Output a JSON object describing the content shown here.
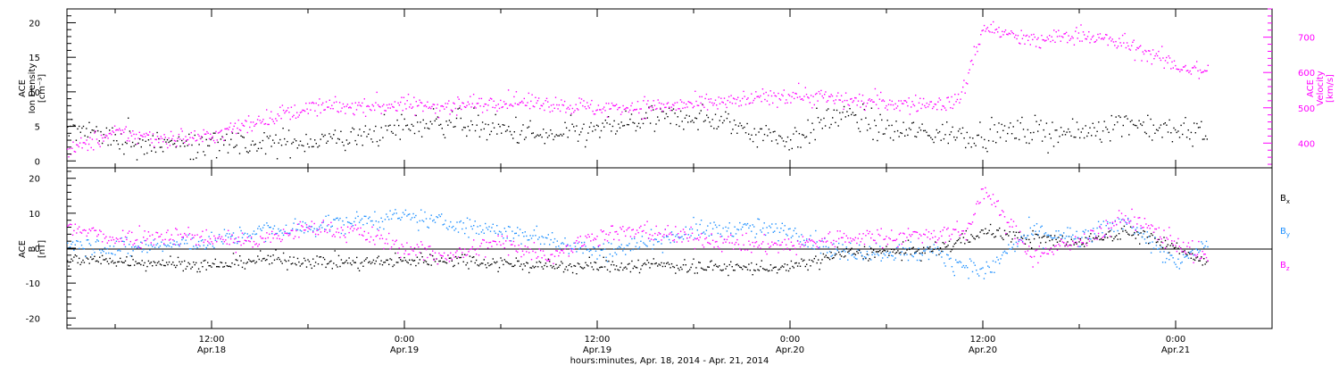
{
  "colors": {
    "axes": "#000000",
    "magenta": "#ff00ff",
    "blue": "#1e90ff"
  },
  "x_axis": {
    "ticks": [
      {
        "t": 12,
        "time": "12:00",
        "date": "Apr.18"
      },
      {
        "t": 24,
        "time": "0:00",
        "date": "Apr.19"
      },
      {
        "t": 36,
        "time": "12:00",
        "date": "Apr.19"
      },
      {
        "t": 48,
        "time": "0:00",
        "date": "Apr.20"
      },
      {
        "t": 60,
        "time": "12:00",
        "date": "Apr.20"
      },
      {
        "t": 72,
        "time": "0:00",
        "date": "Apr.21"
      }
    ],
    "title": "hours:minutes, Apr. 18, 2014 - Apr. 21, 2014"
  },
  "chart_data": [
    {
      "type": "scatter",
      "panel": "top",
      "xlim": [
        "Apr. 18 03:00",
        "Apr. 21 06:00"
      ],
      "left_axis": {
        "title_lines": [
          "ACE",
          "Ion Density",
          "[cm⁻³]"
        ],
        "ylim": [
          -1,
          22
        ],
        "tick_labels": [
          "0",
          "5",
          "10",
          "15",
          "20"
        ]
      },
      "right_axis": {
        "title_lines": [
          "ACE",
          "Velocity",
          "[km/s]"
        ],
        "ylim": [
          330,
          780
        ],
        "tick_labels": [
          "400",
          "500",
          "600",
          "700"
        ]
      },
      "series": [
        {
          "quantity": "density",
          "color": "#000000",
          "axis": "left",
          "x": [
            "Apr.18 03:00",
            "Apr.18 06:00",
            "Apr.18 09:00",
            "Apr.18 12:00",
            "Apr.18 15:00",
            "Apr.18 18:00",
            "Apr.18 21:00",
            "Apr.19 00:00",
            "Apr.19 03:00",
            "Apr.19 06:00",
            "Apr.19 09:00",
            "Apr.19 12:00",
            "Apr.19 15:00",
            "Apr.19 18:00",
            "Apr.19 21:00",
            "Apr.20 00:00",
            "Apr.20 03:00",
            "Apr.20 06:00",
            "Apr.20 09:00",
            "Apr.20 12:00",
            "Apr.20 15:00",
            "Apr.20 18:00",
            "Apr.20 21:00",
            "Apr.21 00:00",
            "Apr.21 02:00"
          ],
          "values": [
            5,
            3.2,
            2.5,
            2.5,
            2.3,
            3,
            3.5,
            5,
            6,
            4.5,
            3.5,
            4.5,
            6,
            6.5,
            5,
            3,
            7,
            4.5,
            4,
            4,
            4.5,
            4,
            6,
            4,
            5
          ]
        },
        {
          "quantity": "velocity",
          "color": "#ff00ff",
          "axis": "right",
          "x": [
            "Apr.18 03:00",
            "Apr.18 06:00",
            "Apr.18 09:00",
            "Apr.18 12:00",
            "Apr.18 15:00",
            "Apr.18 18:00",
            "Apr.18 21:00",
            "Apr.19 00:00",
            "Apr.19 03:00",
            "Apr.19 06:00",
            "Apr.19 09:00",
            "Apr.19 12:00",
            "Apr.19 15:00",
            "Apr.19 18:00",
            "Apr.19 21:00",
            "Apr.20 00:00",
            "Apr.20 03:00",
            "Apr.20 06:00",
            "Apr.20 09:00",
            "Apr.20 10:30",
            "Apr.20 12:00",
            "Apr.20 15:00",
            "Apr.20 18:00",
            "Apr.20 21:00",
            "Apr.21 00:00",
            "Apr.21 02:00"
          ],
          "values": [
            380,
            430,
            415,
            420,
            470,
            500,
            505,
            510,
            505,
            520,
            515,
            500,
            505,
            510,
            520,
            540,
            525,
            515,
            510,
            520,
            730,
            690,
            710,
            680,
            620,
            600
          ]
        }
      ]
    },
    {
      "type": "scatter",
      "panel": "bottom",
      "xlim": [
        "Apr. 18 03:00",
        "Apr. 21 06:00"
      ],
      "left_axis": {
        "title_lines": [
          "ACE",
          "B",
          "[nT]"
        ],
        "ylim": [
          -23,
          23
        ],
        "tick_labels": [
          "-20",
          "-10",
          "0",
          "10",
          "20"
        ]
      },
      "legend_placement": "right",
      "series": [
        {
          "name": "Bx",
          "color": "#000000",
          "x": [
            "Apr.18 03:00",
            "Apr.18 06:00",
            "Apr.18 09:00",
            "Apr.18 12:00",
            "Apr.18 15:00",
            "Apr.18 18:00",
            "Apr.18 21:00",
            "Apr.19 00:00",
            "Apr.19 03:00",
            "Apr.19 06:00",
            "Apr.19 09:00",
            "Apr.19 12:00",
            "Apr.19 15:00",
            "Apr.19 18:00",
            "Apr.19 21:00",
            "Apr.20 00:00",
            "Apr.20 03:00",
            "Apr.20 06:00",
            "Apr.20 09:00",
            "Apr.20 12:00",
            "Apr.20 15:00",
            "Apr.20 18:00",
            "Apr.20 21:00",
            "Apr.21 00:00",
            "Apr.21 02:00"
          ],
          "values": [
            -3,
            -3.5,
            -4,
            -5,
            -3,
            -3.5,
            -4,
            -3.5,
            -3,
            -4,
            -5,
            -5,
            -4.5,
            -5,
            -5.5,
            -5.5,
            -1.5,
            -1,
            -0.5,
            5,
            3,
            2,
            5,
            0,
            -4
          ]
        },
        {
          "name": "By",
          "color": "#1e90ff",
          "x": [
            "Apr.18 03:00",
            "Apr.18 06:00",
            "Apr.18 09:00",
            "Apr.18 12:00",
            "Apr.18 15:00",
            "Apr.18 18:00",
            "Apr.18 21:00",
            "Apr.19 00:00",
            "Apr.19 03:00",
            "Apr.19 06:00",
            "Apr.19 09:00",
            "Apr.19 12:00",
            "Apr.19 15:00",
            "Apr.19 18:00",
            "Apr.19 21:00",
            "Apr.20 00:00",
            "Apr.20 03:00",
            "Apr.20 06:00",
            "Apr.20 09:00",
            "Apr.20 12:00",
            "Apr.20 15:00",
            "Apr.20 18:00",
            "Apr.20 21:00",
            "Apr.21 00:00",
            "Apr.21 02:00"
          ],
          "values": [
            2,
            0,
            1,
            2,
            5,
            6,
            8,
            9,
            7,
            5,
            3,
            -1,
            2,
            5,
            6,
            5,
            -1,
            -1,
            -1,
            -7,
            5,
            3,
            8,
            -5,
            2
          ]
        },
        {
          "name": "Bz",
          "color": "#ff00ff",
          "x": [
            "Apr.18 03:00",
            "Apr.18 06:00",
            "Apr.18 09:00",
            "Apr.18 12:00",
            "Apr.18 15:00",
            "Apr.18 18:00",
            "Apr.18 21:00",
            "Apr.19 00:00",
            "Apr.19 03:00",
            "Apr.19 06:00",
            "Apr.19 09:00",
            "Apr.19 12:00",
            "Apr.19 15:00",
            "Apr.19 18:00",
            "Apr.19 21:00",
            "Apr.20 00:00",
            "Apr.20 03:00",
            "Apr.20 06:00",
            "Apr.20 09:00",
            "Apr.20 11:00",
            "Apr.20 12:00",
            "Apr.20 15:00",
            "Apr.20 18:00",
            "Apr.20 21:00",
            "Apr.21 00:00",
            "Apr.21 02:00"
          ],
          "values": [
            6,
            3,
            4,
            3,
            2,
            6,
            5,
            0,
            -2,
            2,
            -2,
            4,
            5,
            3,
            1,
            1,
            3,
            3.5,
            4,
            5,
            17,
            -2,
            2,
            9,
            2,
            -3
          ]
        }
      ]
    }
  ]
}
